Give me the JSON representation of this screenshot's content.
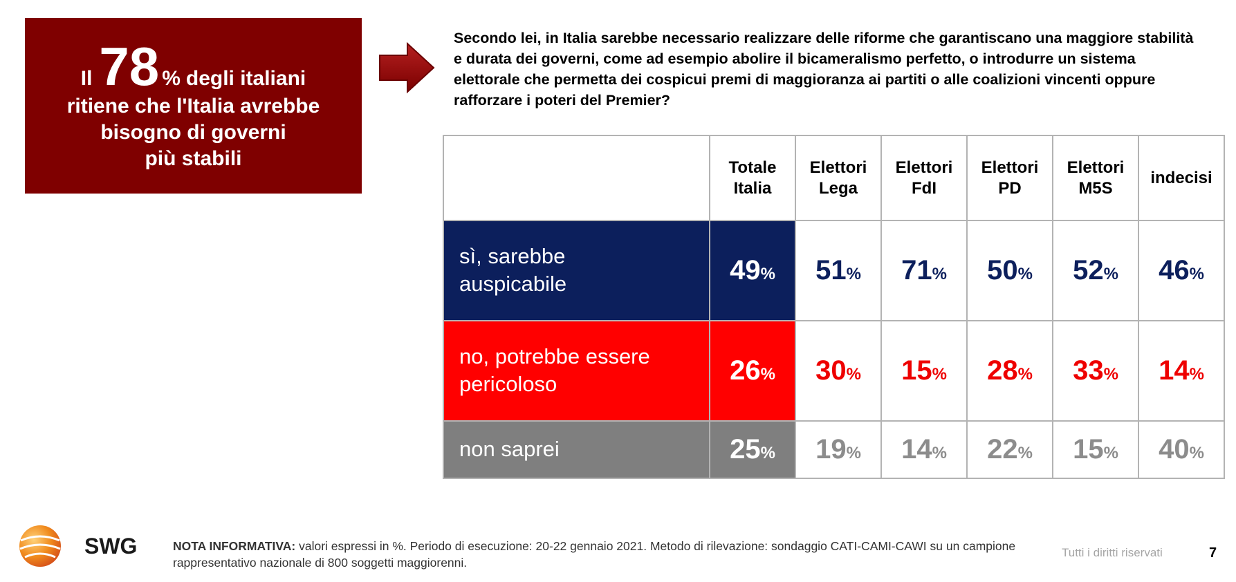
{
  "callout": {
    "prefix": "Il",
    "percent": "78",
    "percent_sign": "%",
    "line1_rest": "degli italiani",
    "line2": "ritiene che l'Italia avrebbe",
    "line3": "bisogno di governi",
    "line4": "più stabili"
  },
  "question": "Secondo lei, in Italia sarebbe necessario realizzare delle riforme che garantiscano una maggiore stabilità e durata dei governi, come ad esempio abolire il bicameralismo perfetto, o introdurre un sistema elettorale che permetta dei cospicui premi di maggioranza ai partiti o alle coalizioni vincenti oppure rafforzare i poteri del Premier?",
  "table": {
    "headers": [
      {
        "l1": "Totale",
        "l2": "Italia"
      },
      {
        "l1": "Elettori",
        "l2": "Lega"
      },
      {
        "l1": "Elettori",
        "l2": "FdI"
      },
      {
        "l1": "Elettori",
        "l2": "PD"
      },
      {
        "l1": "Elettori",
        "l2": "M5S"
      },
      {
        "l1": "indecisi",
        "l2": ""
      }
    ],
    "rows": [
      {
        "l1": "sì, sarebbe",
        "l2": "auspicabile",
        "values": [
          "49",
          "51",
          "71",
          "50",
          "52",
          "46"
        ]
      },
      {
        "l1": "no, potrebbe essere",
        "l2": "pericoloso",
        "values": [
          "26",
          "30",
          "15",
          "28",
          "33",
          "14"
        ]
      },
      {
        "l1": "non saprei",
        "l2": "",
        "values": [
          "25",
          "19",
          "14",
          "22",
          "15",
          "40"
        ]
      }
    ],
    "percent_sign": "%"
  },
  "footer": {
    "logo_text": "SWG",
    "note_label": "NOTA INFORMATIVA:",
    "note_text": "valori espressi in %. Periodo di esecuzione: 20-22 gennaio 2021. Metodo di rilevazione: sondaggio CATI-CAMI-CAWI su un campione rappresentativo nazionale di 800 soggetti maggiorenni.",
    "rights": "Tutti i diritti riservati",
    "page": "7"
  },
  "colors": {
    "callout_bg": "#7f0000",
    "yes": "#0c1f5c",
    "no": "#ff0000",
    "dont_know": "#7f7f7f"
  }
}
